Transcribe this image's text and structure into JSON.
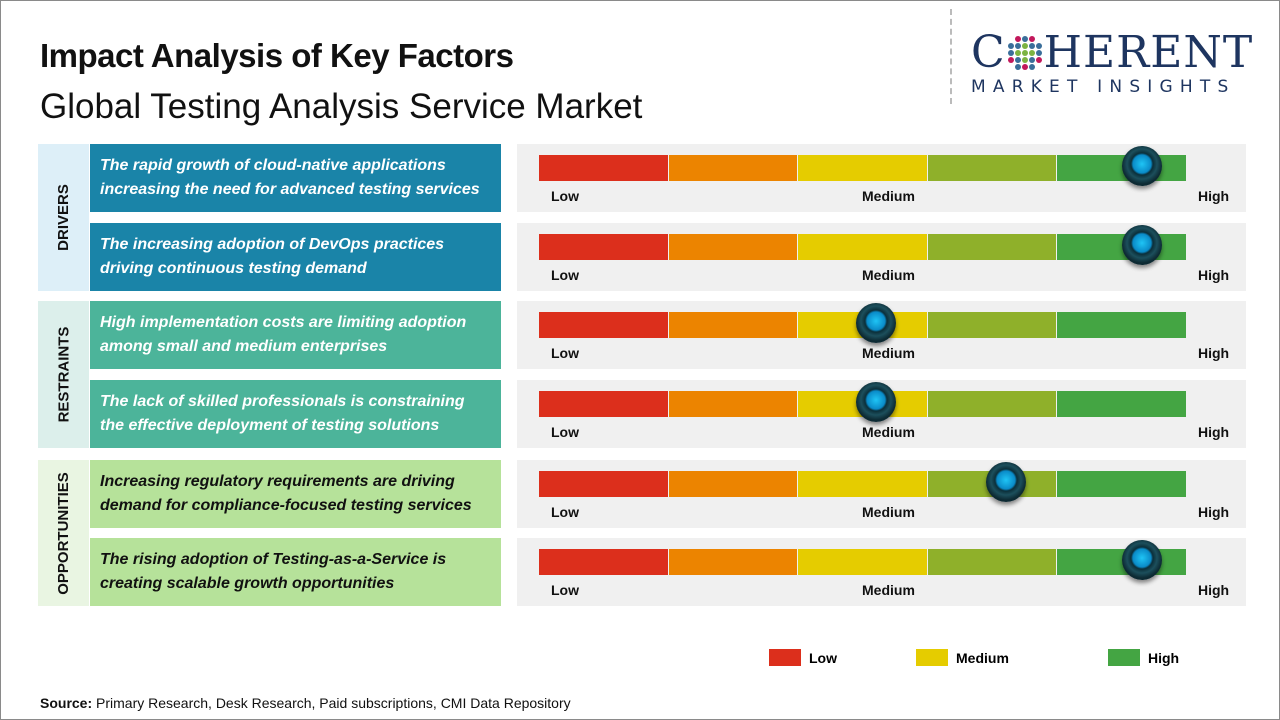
{
  "title": "Impact Analysis of Key Factors",
  "subtitle": "Global Testing Analysis Service Market",
  "logo": {
    "main": "COHERENT",
    "tagline": "MARKET INSIGHTS"
  },
  "chart_data": {
    "type": "gauge",
    "scale_labels": [
      "Low",
      "Medium",
      "High"
    ],
    "segment_colors": [
      "#dc2f1c",
      "#ec8400",
      "#e5cc00",
      "#8fb02a",
      "#44a543"
    ],
    "categories": [
      {
        "name": "DRIVERS",
        "bg": "#ddeff8",
        "box": "#1a84a8",
        "text_color": "#ffffff",
        "factors": [
          {
            "text": "The rapid growth of cloud-native applications increasing the need for advanced testing services",
            "impact": 0.93
          },
          {
            "text": "The increasing adoption of DevOps practices driving continuous testing demand",
            "impact": 0.93
          }
        ]
      },
      {
        "name": "RESTRAINTS",
        "bg": "#dcefeb",
        "box": "#4cb49a",
        "text_color": "#ffffff",
        "factors": [
          {
            "text": "High implementation costs are limiting adoption among small and medium enterprises",
            "impact": 0.52
          },
          {
            "text": "The lack of skilled professionals is constraining the effective deployment of testing solutions",
            "impact": 0.52
          }
        ]
      },
      {
        "name": "OPPORTUNITIES",
        "bg": "#e9f5e2",
        "box": "#b6e29a",
        "text_color": "#111111",
        "factors": [
          {
            "text": "Increasing regulatory requirements are driving demand for compliance-focused testing services",
            "impact": 0.72
          },
          {
            "text": "The rising adoption of Testing-as-a-Service is creating scalable growth opportunities",
            "impact": 0.93
          }
        ]
      }
    ],
    "legend": [
      {
        "label": "Low",
        "color": "#dc2f1c"
      },
      {
        "label": "Medium",
        "color": "#e5cc00"
      },
      {
        "label": "High",
        "color": "#44a543"
      }
    ]
  },
  "source": {
    "label": "Source:",
    "text": " Primary Research, Desk Research, Paid subscriptions, CMI Data Repository"
  }
}
